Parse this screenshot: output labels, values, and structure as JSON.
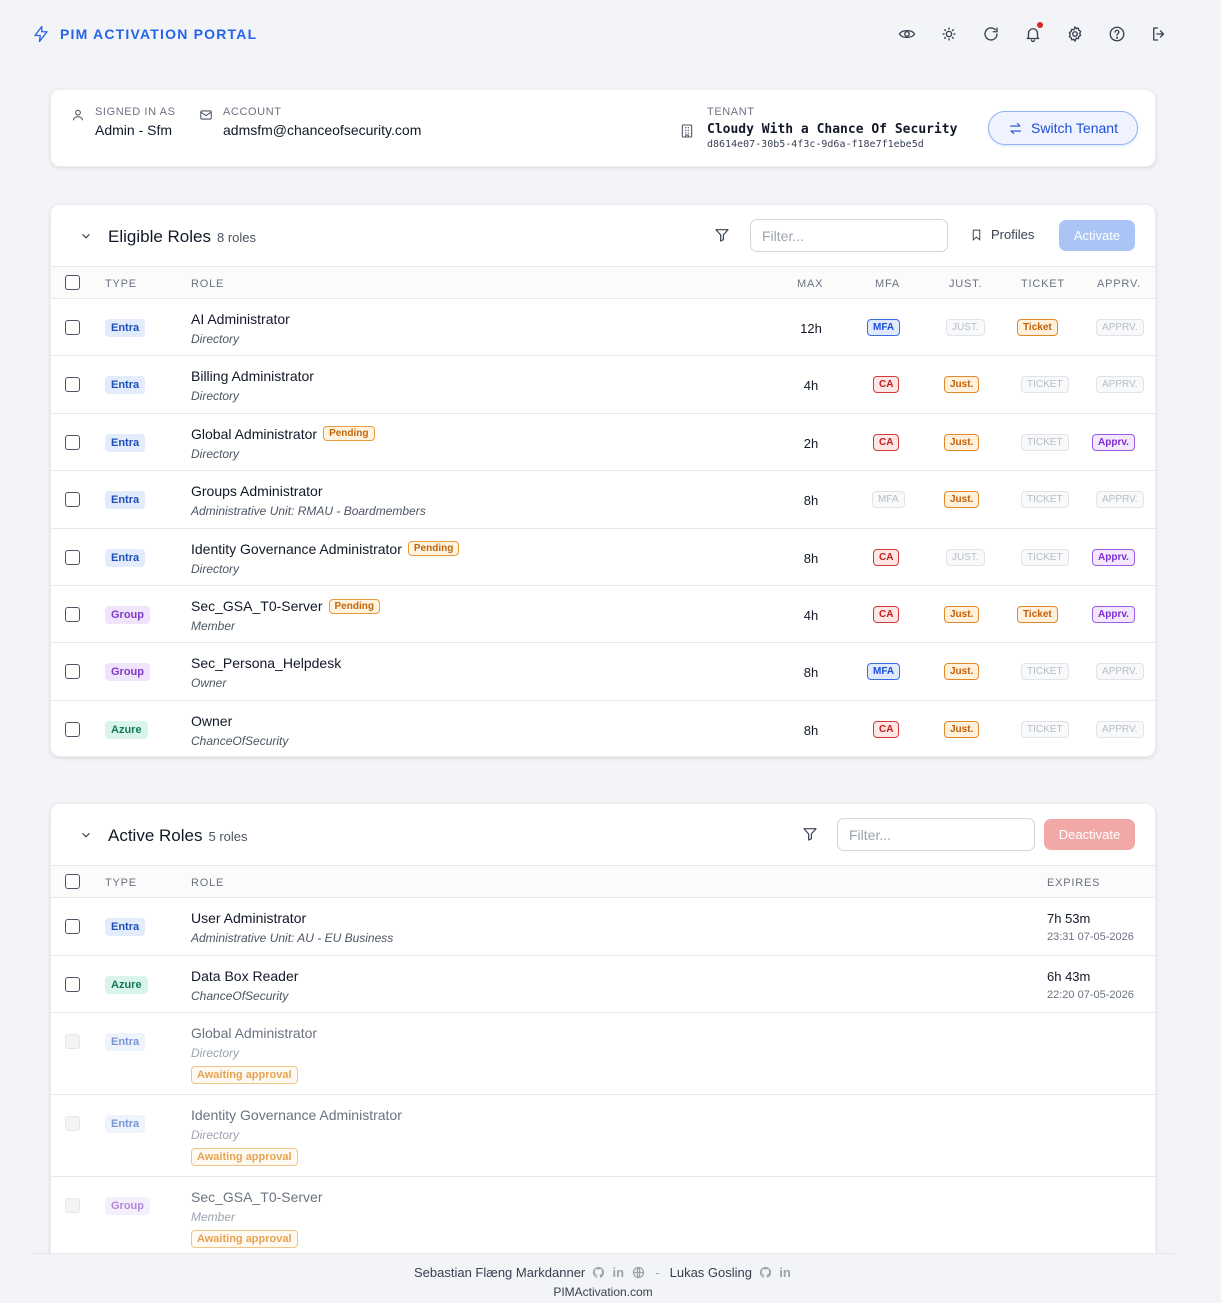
{
  "app": {
    "title": "PIM ACTIVATION PORTAL"
  },
  "header_icons": [
    "eye-icon",
    "sun-icon",
    "refresh-icon",
    "bell-icon",
    "gear-icon",
    "help-icon",
    "logout-icon"
  ],
  "account": {
    "signed_in_label": "SIGNED IN AS",
    "signed_in_value": "Admin - Sfm",
    "account_label": "ACCOUNT",
    "account_value": "admsfm@chanceofsecurity.com",
    "tenant_label": "TENANT",
    "tenant_name": "Cloudy With a Chance Of Security",
    "tenant_id": "d8614e07-30b5-4f3c-9d6a-f18e7f1ebe5d",
    "switch_label": "Switch Tenant"
  },
  "eligible": {
    "title": "Eligible Roles",
    "count": "8 roles",
    "filter_placeholder": "Filter...",
    "profiles_label": "Profiles",
    "activate_label": "Activate",
    "columns": {
      "type": "TYPE",
      "role": "ROLE",
      "max": "MAX",
      "mfa": "MFA",
      "just": "JUST.",
      "ticket": "TICKET",
      "apprv": "APPRV."
    },
    "rows": [
      {
        "type": "Entra",
        "name": "AI Administrator",
        "sub": "Directory",
        "pending": "",
        "max": "12h",
        "mfa": "MFA",
        "just": "JUST.",
        "ticket": "Ticket",
        "apprv": "APPRV."
      },
      {
        "type": "Entra",
        "name": "Billing Administrator",
        "sub": "Directory",
        "pending": "",
        "max": "4h",
        "mfa": "CA",
        "just": "Just.",
        "ticket": "TICKET",
        "apprv": "APPRV."
      },
      {
        "type": "Entra",
        "name": "Global Administrator",
        "sub": "Directory",
        "pending": "Pending",
        "max": "2h",
        "mfa": "CA",
        "just": "Just.",
        "ticket": "TICKET",
        "apprv": "Apprv."
      },
      {
        "type": "Entra",
        "name": "Groups Administrator",
        "sub": "Administrative Unit: RMAU - Boardmembers",
        "pending": "",
        "max": "8h",
        "mfa": "MFA",
        "just": "Just.",
        "ticket": "TICKET",
        "apprv": "APPRV."
      },
      {
        "type": "Entra",
        "name": "Identity Governance Administrator",
        "sub": "Directory",
        "pending": "Pending",
        "max": "8h",
        "mfa": "CA",
        "just": "JUST.",
        "ticket": "TICKET",
        "apprv": "Apprv."
      },
      {
        "type": "Group",
        "name": "Sec_GSA_T0-Server",
        "sub": "Member",
        "pending": "Pending",
        "max": "4h",
        "mfa": "CA",
        "just": "Just.",
        "ticket": "Ticket",
        "apprv": "Apprv."
      },
      {
        "type": "Group",
        "name": "Sec_Persona_Helpdesk",
        "sub": "Owner",
        "pending": "",
        "max": "8h",
        "mfa": "MFA",
        "just": "Just.",
        "ticket": "TICKET",
        "apprv": "APPRV."
      },
      {
        "type": "Azure",
        "name": "Owner",
        "sub": "ChanceOfSecurity",
        "pending": "",
        "max": "8h",
        "mfa": "CA",
        "just": "Just.",
        "ticket": "TICKET",
        "apprv": "APPRV."
      }
    ]
  },
  "active": {
    "title": "Active Roles",
    "count": "5 roles",
    "filter_placeholder": "Filter...",
    "deactivate_label": "Deactivate",
    "columns": {
      "type": "TYPE",
      "role": "ROLE",
      "expires": "EXPIRES"
    },
    "rows": [
      {
        "type": "Entra",
        "name": "User Administrator",
        "sub": "Administrative Unit: AU - EU Business",
        "expires": "7h 53m",
        "expires_at": "23:31 07-05-2026",
        "awaiting": ""
      },
      {
        "type": "Azure",
        "name": "Data Box Reader",
        "sub": "ChanceOfSecurity",
        "expires": "6h 43m",
        "expires_at": "22:20 07-05-2026",
        "awaiting": ""
      },
      {
        "type": "Entra",
        "name": "Global Administrator",
        "sub": "Directory",
        "expires": "",
        "expires_at": "",
        "awaiting": "Awaiting approval"
      },
      {
        "type": "Entra",
        "name": "Identity Governance Administrator",
        "sub": "Directory",
        "expires": "",
        "expires_at": "",
        "awaiting": "Awaiting approval"
      },
      {
        "type": "Group",
        "name": "Sec_GSA_T0-Server",
        "sub": "Member",
        "expires": "",
        "expires_at": "",
        "awaiting": "Awaiting approval"
      }
    ]
  },
  "footer": {
    "author1": "Sebastian Flæng Markdanner",
    "separator": "-",
    "author2": "Lukas Gosling",
    "site": "PIMActivation.com"
  }
}
